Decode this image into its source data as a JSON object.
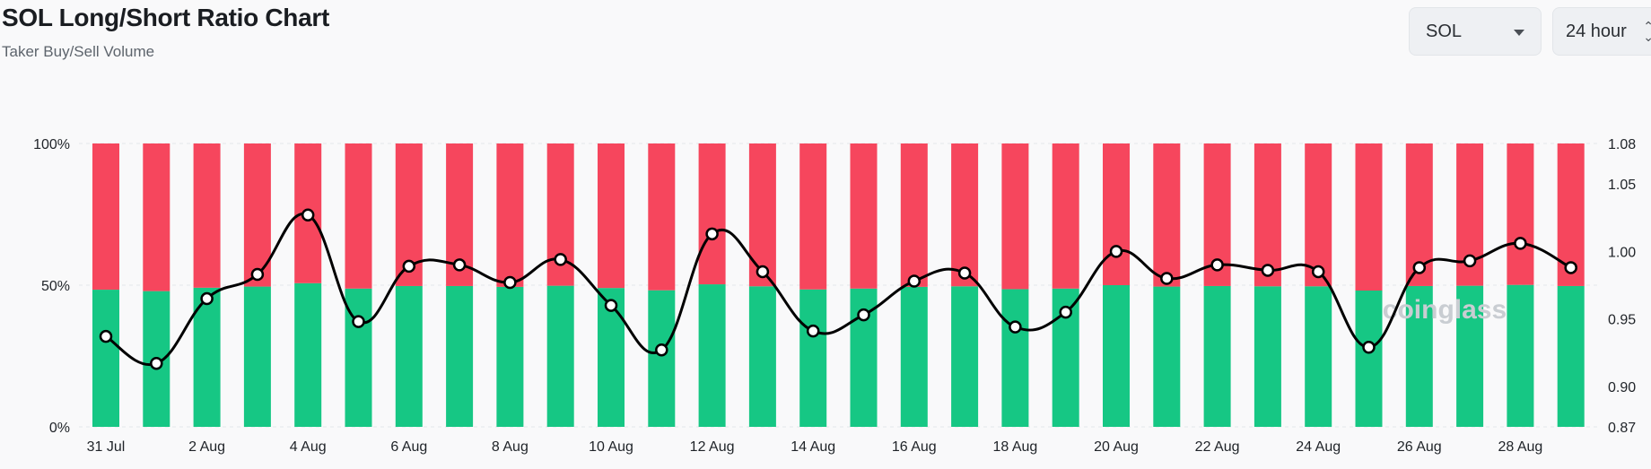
{
  "header": {
    "title": "SOL Long/Short Ratio Chart",
    "subtitle": "Taker Buy/Sell Volume"
  },
  "controls": {
    "symbol": {
      "value": "SOL",
      "icon": "chevron-down-icon"
    },
    "interval": {
      "value": "24 hour",
      "icon": "up-down-arrows-icon"
    }
  },
  "watermark": "coinglass",
  "colors": {
    "long": "#16c784",
    "short": "#f6465d",
    "ratio_line": "#000000"
  },
  "chart_data": {
    "type": "bar",
    "stacked": true,
    "categories": [
      "31 Jul",
      "1 Aug",
      "2 Aug",
      "3 Aug",
      "4 Aug",
      "5 Aug",
      "6 Aug",
      "7 Aug",
      "8 Aug",
      "9 Aug",
      "10 Aug",
      "11 Aug",
      "12 Aug",
      "13 Aug",
      "14 Aug",
      "15 Aug",
      "16 Aug",
      "17 Aug",
      "18 Aug",
      "19 Aug",
      "20 Aug",
      "21 Aug",
      "22 Aug",
      "23 Aug",
      "24 Aug",
      "25 Aug",
      "26 Aug",
      "27 Aug",
      "28 Aug",
      "29 Aug"
    ],
    "x_tick_labels": [
      "31 Jul",
      "2 Aug",
      "4 Aug",
      "6 Aug",
      "8 Aug",
      "10 Aug",
      "12 Aug",
      "14 Aug",
      "16 Aug",
      "18 Aug",
      "20 Aug",
      "22 Aug",
      "24 Aug",
      "26 Aug",
      "28 Aug"
    ],
    "series": [
      {
        "axis": "left",
        "values": [
          48.4,
          47.9,
          49.1,
          49.5,
          50.7,
          48.8,
          49.7,
          49.7,
          49.4,
          49.8,
          49.0,
          48.2,
          50.3,
          49.6,
          48.5,
          48.8,
          49.4,
          49.6,
          48.6,
          48.8,
          50.0,
          49.5,
          49.7,
          49.6,
          49.6,
          48.1,
          49.7,
          49.8,
          50.1,
          49.7
        ]
      },
      {
        "axis": "left",
        "values": [
          51.6,
          52.1,
          50.9,
          50.5,
          49.3,
          51.2,
          50.3,
          50.3,
          50.6,
          50.2,
          51.0,
          51.8,
          49.7,
          50.4,
          51.5,
          51.2,
          50.6,
          50.4,
          51.4,
          51.2,
          50.0,
          50.5,
          50.3,
          50.4,
          50.4,
          51.9,
          50.3,
          50.2,
          49.9,
          50.3
        ]
      },
      {
        "type": "line",
        "axis": "right",
        "values": [
          0.937,
          0.917,
          0.965,
          0.983,
          1.027,
          0.948,
          0.989,
          0.99,
          0.977,
          0.994,
          0.96,
          0.927,
          1.013,
          0.985,
          0.941,
          0.953,
          0.978,
          0.984,
          0.944,
          0.955,
          1.0,
          0.98,
          0.99,
          0.986,
          0.985,
          0.929,
          0.988,
          0.993,
          1.006,
          0.988
        ]
      }
    ],
    "yaxis_left": {
      "ticks": [
        "0%",
        "50%",
        "100%"
      ],
      "ylim": [
        0,
        100
      ]
    },
    "yaxis_right": {
      "ticks": [
        "0.87",
        "0.90",
        "0.95",
        "1.00",
        "1.05",
        "1.08"
      ],
      "ylim": [
        0.87,
        1.08
      ]
    },
    "grid": "horizontal-dashed",
    "legend": "none"
  }
}
